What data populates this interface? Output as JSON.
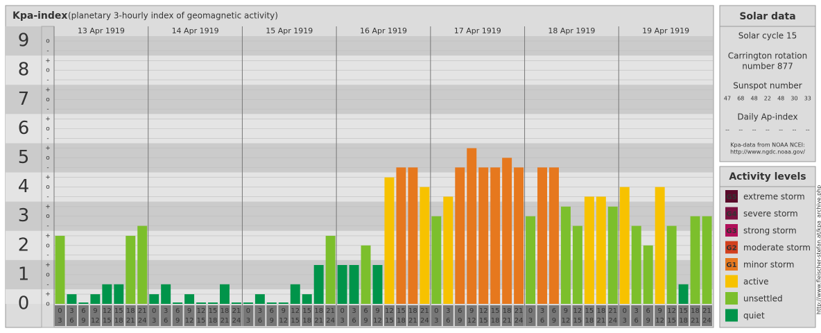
{
  "chart_data": {
    "type": "bar",
    "title": "Kpa-index",
    "subtitle": "(planetary 3-hourly index of geomagnetic activity)",
    "days": [
      "13 Apr 1919",
      "14 Apr 1919",
      "15 Apr 1919",
      "16 Apr 1919",
      "17 Apr 1919",
      "18 Apr 1919",
      "19 Apr 1919"
    ],
    "hours": [
      [
        "0",
        "3"
      ],
      [
        "3",
        "6"
      ],
      [
        "6",
        "9"
      ],
      [
        "9",
        "12"
      ],
      [
        "12",
        "15"
      ],
      [
        "15",
        "18"
      ],
      [
        "18",
        "21"
      ],
      [
        "21",
        "24"
      ]
    ],
    "values": [
      2.33,
      0.33,
      0,
      0.33,
      0.67,
      0.67,
      2.33,
      2.67,
      0.33,
      0.67,
      0,
      0.33,
      0,
      0,
      0.67,
      0,
      0,
      0.33,
      0,
      0,
      0.67,
      0.33,
      1.33,
      2.33,
      1.33,
      1.33,
      2,
      1.33,
      4.33,
      4.67,
      4.67,
      4,
      3,
      3.67,
      4.67,
      5.33,
      4.67,
      4.67,
      5,
      4.67,
      3,
      4.67,
      4.67,
      3.33,
      2.67,
      3.67,
      3.67,
      3.33,
      4,
      2.67,
      2,
      4,
      2.67,
      0.67,
      3,
      3
    ],
    "colors": [
      "#7cbf2c",
      "#00944a",
      "#00944a",
      "#00944a",
      "#00944a",
      "#00944a",
      "#7cbf2c",
      "#7cbf2c",
      "#00944a",
      "#00944a",
      "#00944a",
      "#00944a",
      "#00944a",
      "#00944a",
      "#00944a",
      "#00944a",
      "#00944a",
      "#00944a",
      "#00944a",
      "#00944a",
      "#00944a",
      "#00944a",
      "#00944a",
      "#7cbf2c",
      "#00944a",
      "#00944a",
      "#7cbf2c",
      "#00944a",
      "#f7c200",
      "#e6781e",
      "#e6781e",
      "#f7c200",
      "#7cbf2c",
      "#f7c200",
      "#e6781e",
      "#e6781e",
      "#e6781e",
      "#e6781e",
      "#e6781e",
      "#e6781e",
      "#7cbf2c",
      "#e6781e",
      "#e6781e",
      "#7cbf2c",
      "#7cbf2c",
      "#f7c200",
      "#f7c200",
      "#7cbf2c",
      "#f7c200",
      "#7cbf2c",
      "#7cbf2c",
      "#f7c200",
      "#7cbf2c",
      "#00944a",
      "#7cbf2c",
      "#7cbf2c"
    ],
    "ylim": [
      0,
      9.5
    ],
    "yticks": [
      0,
      1,
      2,
      3,
      4,
      5,
      6,
      7,
      8,
      9
    ],
    "minor_ticks": [
      {
        "value": 0,
        "label": "o"
      },
      {
        "value": 0.33,
        "label": "+"
      },
      {
        "value": 0.67,
        "label": "-"
      },
      {
        "value": 1,
        "label": "o"
      },
      {
        "value": 1.33,
        "label": "+"
      },
      {
        "value": 1.67,
        "label": "-"
      },
      {
        "value": 2,
        "label": "o"
      },
      {
        "value": 2.33,
        "label": "+"
      },
      {
        "value": 2.67,
        "label": "-"
      },
      {
        "value": 3,
        "label": "o"
      },
      {
        "value": 3.33,
        "label": "+"
      },
      {
        "value": 3.67,
        "label": "-"
      },
      {
        "value": 4,
        "label": "o"
      },
      {
        "value": 4.33,
        "label": "+"
      },
      {
        "value": 4.67,
        "label": "-"
      },
      {
        "value": 5,
        "label": "o"
      },
      {
        "value": 5.33,
        "label": "+"
      },
      {
        "value": 5.67,
        "label": "-"
      },
      {
        "value": 6,
        "label": "o"
      },
      {
        "value": 6.33,
        "label": "+"
      },
      {
        "value": 6.67,
        "label": "-"
      },
      {
        "value": 7,
        "label": "o"
      },
      {
        "value": 7.33,
        "label": "+"
      },
      {
        "value": 7.67,
        "label": "-"
      },
      {
        "value": 8,
        "label": "o"
      },
      {
        "value": 8.33,
        "label": "+"
      },
      {
        "value": 8.67,
        "label": "-"
      },
      {
        "value": 9,
        "label": "o"
      }
    ],
    "grid": true
  },
  "solar": {
    "title": "Solar data",
    "cycle": "Solar cycle 15",
    "carrington": [
      "Carrington rotation",
      "number 877"
    ],
    "sunspot_title": "Sunspot number",
    "sunspots": [
      47,
      68,
      48,
      22,
      48,
      30,
      33
    ],
    "ap_title": "Daily Ap-index",
    "ap": [
      "--",
      "--",
      "--",
      "--",
      "--",
      "--",
      "--"
    ],
    "source": [
      "Kpa-data from NOAA NCEI:",
      "http://www.ngdc.noaa.gov/"
    ]
  },
  "legend": {
    "title": "Activity levels",
    "items": [
      {
        "code": "G5",
        "name": "extreme storm",
        "color": "#5a0a2a"
      },
      {
        "code": "G4",
        "name": "severe storm",
        "color": "#7a1040"
      },
      {
        "code": "G3",
        "name": "strong storm",
        "color": "#b0105a"
      },
      {
        "code": "G2",
        "name": "moderate storm",
        "color": "#d2401e"
      },
      {
        "code": "G1",
        "name": "minor storm",
        "color": "#e6781e"
      },
      {
        "name": "active",
        "color": "#f7c200"
      },
      {
        "name": "unsettled",
        "color": "#7cbf2c"
      },
      {
        "name": "quiet",
        "color": "#00944a"
      }
    ]
  },
  "credit": "http://www.fleischer-stefan.at/kpa_archive.php"
}
